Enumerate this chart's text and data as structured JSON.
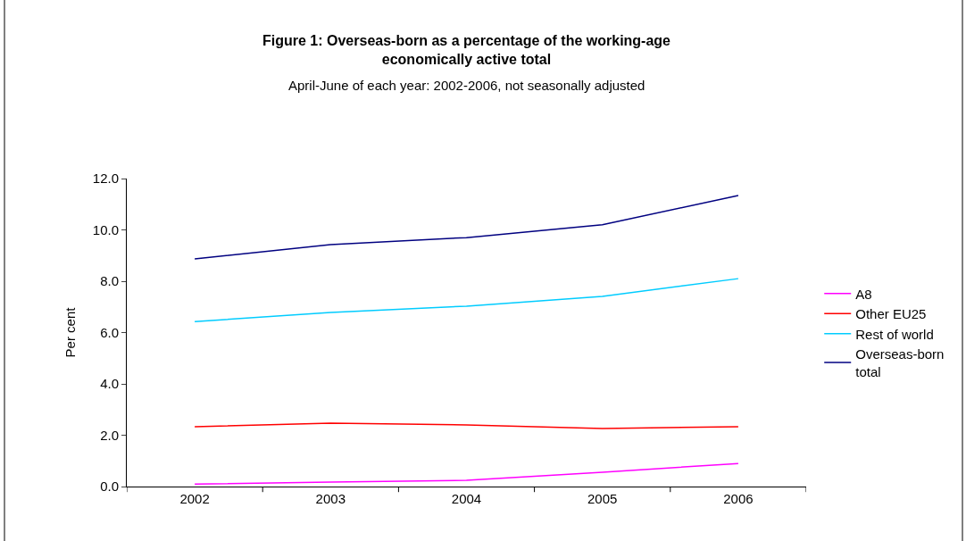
{
  "chart_data": {
    "type": "line",
    "title": "Figure 1: Overseas-born as a percentage of the working-age economically active total",
    "subtitle": "April-June of each year: 2002-2006, not seasonally adjusted",
    "ylabel": "Per cent",
    "categories": [
      "2002",
      "2003",
      "2004",
      "2005",
      "2006"
    ],
    "series": [
      {
        "name": "A8",
        "color": "#ff00ff",
        "values": [
          0.1,
          0.17,
          0.24,
          0.56,
          0.9
        ]
      },
      {
        "name": "Other EU25",
        "color": "#ff0000",
        "values": [
          2.33,
          2.47,
          2.4,
          2.26,
          2.33
        ]
      },
      {
        "name": "Rest of world",
        "color": "#00ccff",
        "values": [
          6.43,
          6.78,
          7.03,
          7.41,
          8.1
        ]
      },
      {
        "name": "Overseas-born total",
        "color": "#000080",
        "values": [
          8.87,
          9.43,
          9.7,
          10.2,
          11.34
        ]
      }
    ],
    "ylim": [
      0,
      12
    ],
    "yticks": [
      {
        "value": 0,
        "label": "0.0"
      },
      {
        "value": 2,
        "label": "2.0"
      },
      {
        "value": 4,
        "label": "4.0"
      },
      {
        "value": 6,
        "label": "6.0"
      },
      {
        "value": 8,
        "label": "8.0"
      },
      {
        "value": 10,
        "label": "10.0"
      },
      {
        "value": 12,
        "label": "12.0"
      }
    ],
    "legend": "right",
    "marker": "none",
    "line_style": "solid"
  }
}
